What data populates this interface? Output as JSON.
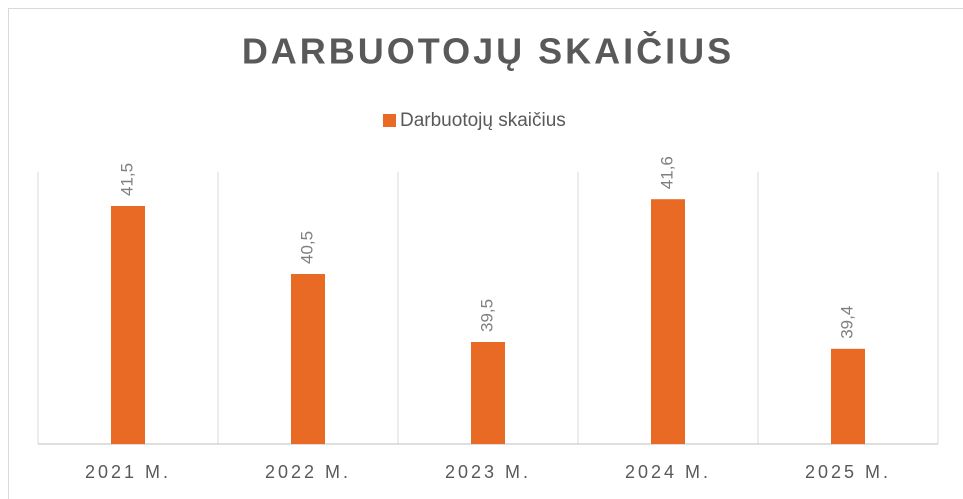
{
  "chart_data": {
    "type": "bar",
    "title": "DARBUOTOJŲ SKAIČIUS",
    "categories": [
      "2021 M.",
      "2022 M.",
      "2023 M.",
      "2024 M.",
      "2025 M."
    ],
    "series": [
      {
        "name": "Darbuotojų skaičius",
        "color": "#e96a24",
        "values": [
          41.5,
          40.5,
          39.5,
          41.6,
          39.4
        ],
        "value_labels": [
          "41,5",
          "40,5",
          "39,5",
          "41,6",
          "39,4"
        ]
      }
    ],
    "ylim": [
      38,
      42
    ],
    "grid": true,
    "legend": "top"
  }
}
